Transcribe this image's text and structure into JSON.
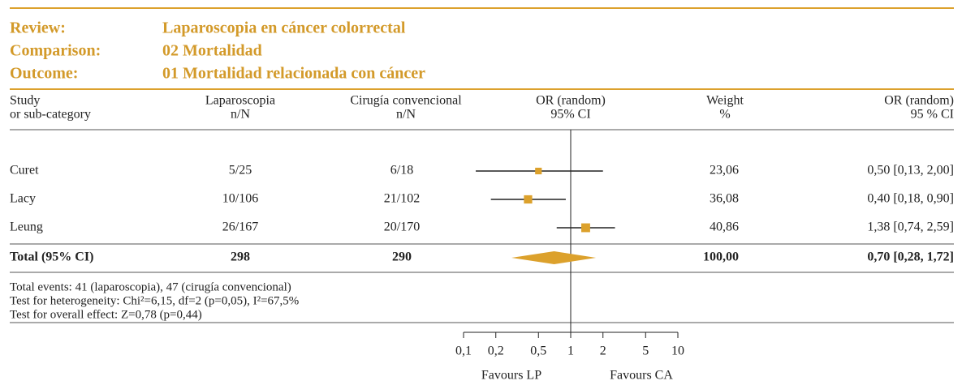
{
  "chart_data": {
    "type": "forest",
    "header": [
      {
        "label": "Review:",
        "value": "Laparoscopia en cáncer colorrectal"
      },
      {
        "label": "Comparison:",
        "value": "02 Mortalidad"
      },
      {
        "label": "Outcome:",
        "value": "01 Mortalidad relacionada con cáncer"
      }
    ],
    "columns": {
      "study": [
        "Study",
        "or sub-category"
      ],
      "laparoscopia": [
        "Laparoscopia",
        "n/N"
      ],
      "convencional": [
        "Cirugía convencional",
        "n/N"
      ],
      "plot": [
        "OR (random)",
        "95% CI"
      ],
      "weight": [
        "Weight",
        "%"
      ],
      "or": [
        "OR (random)",
        "95 % CI"
      ]
    },
    "categories": [
      "Curet",
      "Lacy",
      "Leung",
      "Total (95% CI)"
    ],
    "laparoscopia": [
      "5/25",
      "10/106",
      "26/167",
      298
    ],
    "convencional": [
      "6/18",
      "21/102",
      "20/170",
      290
    ],
    "weight": {
      "values": [
        23.06,
        36.08,
        40.86,
        100
      ],
      "value_labels": [
        "23,06",
        "36,08",
        "40,86",
        "100,00"
      ]
    },
    "or": {
      "values": [
        0.5,
        0.4,
        1.38,
        0.7
      ],
      "ci_low": [
        0.13,
        0.18,
        0.74,
        0.28
      ],
      "ci_high": [
        2.0,
        0.9,
        2.59,
        1.72
      ],
      "value_labels": [
        "0,50 [0,13, 2,00]",
        "0,40 [0,18, 0,90]",
        "1,38 [0,74, 2,59]",
        "0,70 [0,28, 1,72]"
      ]
    },
    "footnotes": [
      "Total events: 41 (laparoscopia), 47 (cirugía convencional)",
      "Test for heterogeneity: Chi²=6,15, df=2 (p=0,05), I²=67,5%",
      "Test for overall effect: Z=0,78 (p=0,44)"
    ],
    "log_scale": true,
    "xlim": [
      0.1,
      10
    ],
    "xticks": [
      {
        "value": 0.1,
        "label": "0,1"
      },
      {
        "value": 0.2,
        "label": "0,2"
      },
      {
        "value": 0.5,
        "label": "0,5"
      },
      1,
      2,
      5,
      10
    ],
    "x_labels": [
      "Favours LP",
      "Favours CA"
    ],
    "color": "#dca12c"
  }
}
